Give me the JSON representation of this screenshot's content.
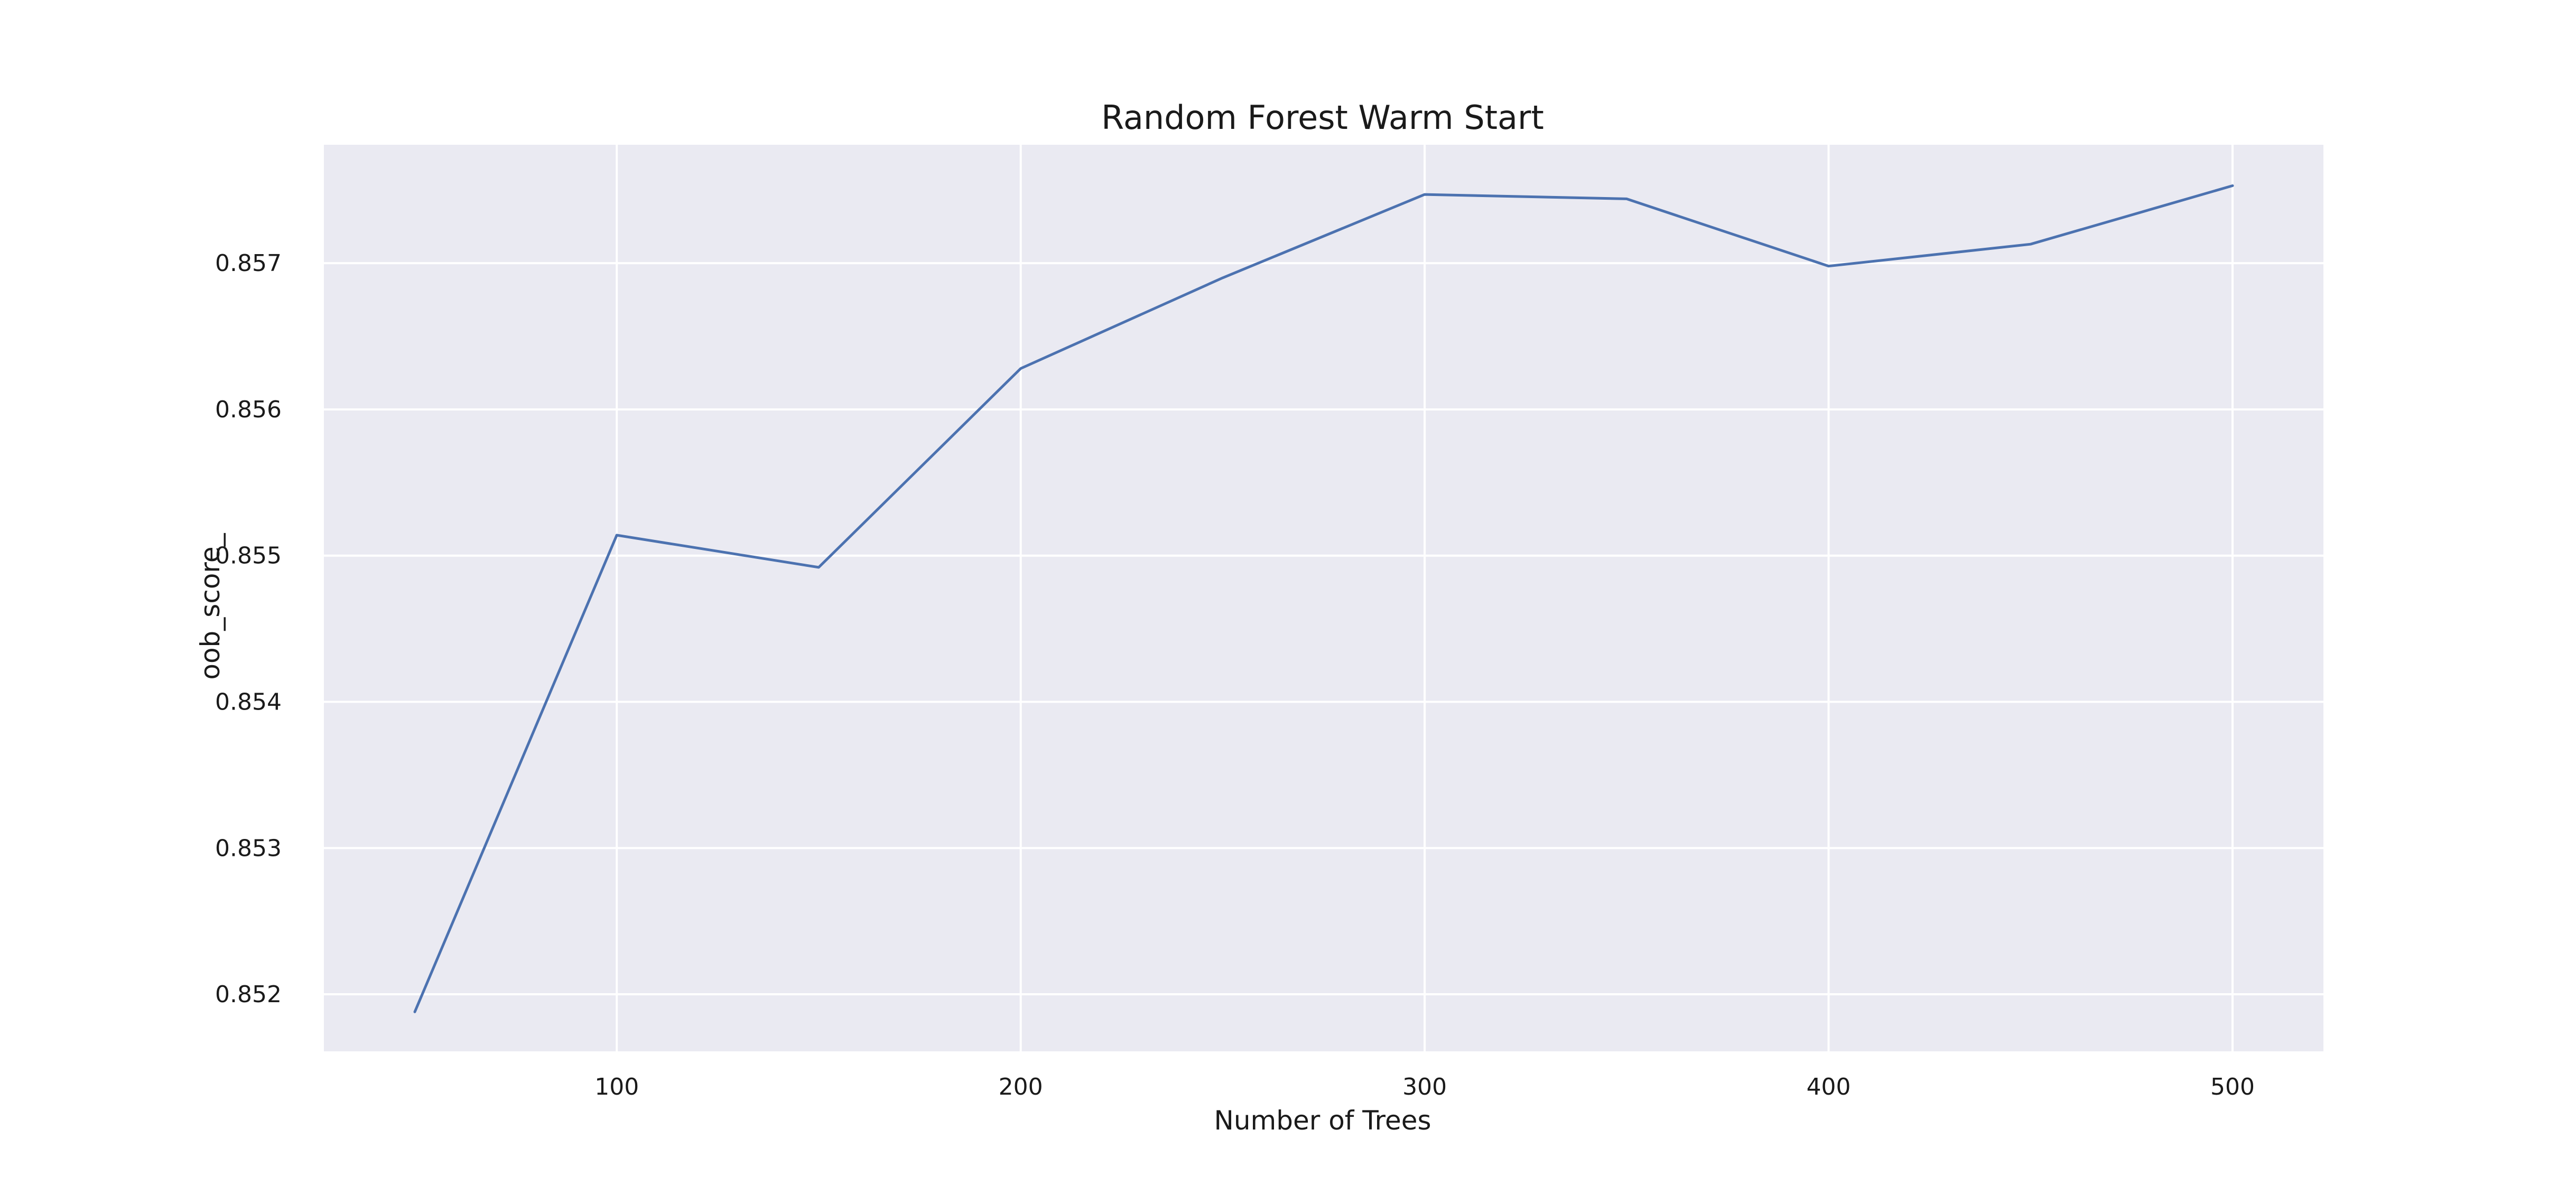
{
  "chart_data": {
    "type": "line",
    "title": "Random Forest Warm Start",
    "xlabel": "Number of Trees",
    "ylabel": "oob_score_",
    "x": [
      50,
      100,
      150,
      200,
      250,
      300,
      350,
      400,
      450,
      500
    ],
    "series": [
      {
        "values": [
          0.85188,
          0.85514,
          0.85492,
          0.85628,
          0.8569,
          0.85747,
          0.85744,
          0.85698,
          0.85713,
          0.85753
        ]
      }
    ],
    "xlim": [
      27.5,
      522.5
    ],
    "ylim": [
      0.85161,
      0.85781
    ],
    "x_ticks": [
      100,
      200,
      300,
      400,
      500
    ],
    "y_ticks": [
      0.852,
      0.853,
      0.854,
      0.855,
      0.856,
      0.857
    ],
    "x_tick_labels": [
      "100",
      "200",
      "300",
      "400",
      "500"
    ],
    "y_tick_labels": [
      "0.852",
      "0.853",
      "0.854",
      "0.855",
      "0.856",
      "0.857"
    ],
    "grid": true,
    "colors": {
      "plot_background": "#eaeaf2",
      "grid": "#ffffff",
      "line": "#4c72b0"
    }
  }
}
